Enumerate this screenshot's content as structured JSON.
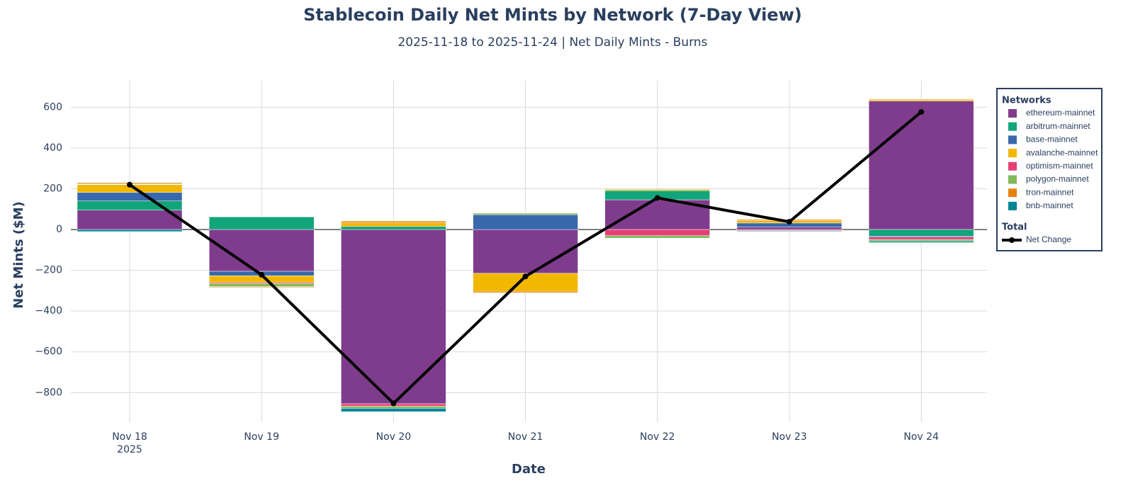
{
  "chart_data": {
    "type": "bar",
    "barmode": "relative",
    "title": "Stablecoin Daily Net Mints by Network (7-Day View)",
    "subtitle": "2025-11-18 to 2025-11-24 | Net Daily Mints - Burns",
    "x_label": "Date",
    "y_label": "Net Mints ($M)",
    "categories": [
      "Nov 18\n2025",
      "Nov 19",
      "Nov 20",
      "Nov 21",
      "Nov 22",
      "Nov 23",
      "Nov 24"
    ],
    "series": [
      {
        "name": "ethereum-mainnet",
        "color": "#7F3C8D",
        "values": [
          95,
          -205,
          -855,
          -215,
          146,
          12,
          631
        ]
      },
      {
        "name": "arbitrum-mainnet",
        "color": "#11A579",
        "values": [
          45,
          62,
          15,
          0,
          45,
          0,
          -32
        ]
      },
      {
        "name": "base-mainnet",
        "color": "#3969AC",
        "values": [
          42,
          -22,
          0,
          73,
          0,
          20,
          -5
        ]
      },
      {
        "name": "avalanche-mainnet",
        "color": "#F2B701",
        "values": [
          38,
          -33,
          18,
          -88,
          6,
          12,
          7
        ]
      },
      {
        "name": "optimism-mainnet",
        "color": "#E73F74",
        "values": [
          2,
          -5,
          -12,
          0,
          -30,
          -5,
          -12
        ]
      },
      {
        "name": "polygon-mainnet",
        "color": "#80BA5A",
        "values": [
          3,
          -15,
          -10,
          7,
          -12,
          -3,
          -8
        ]
      },
      {
        "name": "tron-mainnet",
        "color": "#E68310",
        "values": [
          5,
          -4,
          8,
          -7,
          0,
          5,
          3
        ]
      },
      {
        "name": "bnb-mainnet",
        "color": "#008695",
        "values": [
          -10,
          0,
          -17,
          0,
          0,
          -3,
          -7
        ]
      }
    ],
    "line": {
      "type": "line",
      "name": "Net Change",
      "color": "#000000",
      "values": [
        220,
        -222,
        -853,
        -230,
        155,
        38,
        577
      ]
    },
    "legend": {
      "title": "Networks",
      "group_title": "Total"
    },
    "ylim": [
      -945,
      730
    ],
    "yticks": [
      {
        "value": -800,
        "label": "−800"
      },
      {
        "value": -600,
        "label": "−600"
      },
      {
        "value": -400,
        "label": "−400"
      },
      {
        "value": -200,
        "label": "−200"
      },
      0,
      200,
      400,
      600
    ],
    "grid": true
  }
}
